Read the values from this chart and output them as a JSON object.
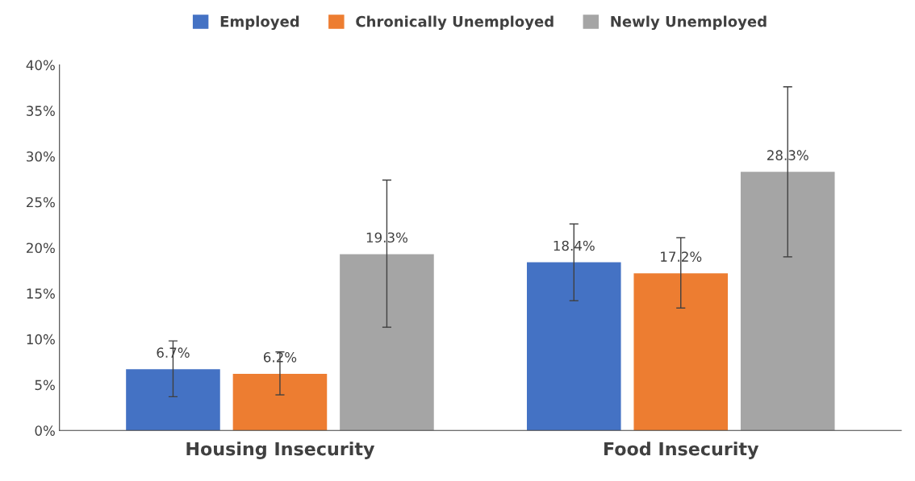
{
  "chart_data": {
    "type": "bar",
    "categories": [
      "Housing Insecurity",
      "Food Insecurity"
    ],
    "series": [
      {
        "name": "Employed",
        "color": "#4472c4",
        "values": [
          6.7,
          18.4
        ],
        "errors": [
          [
            3.7,
            9.8
          ],
          [
            14.2,
            22.6
          ]
        ],
        "value_labels": [
          "6.7%",
          "18.4%"
        ]
      },
      {
        "name": "Chronically Unemployed",
        "color": "#ed7d31",
        "values": [
          6.2,
          17.2
        ],
        "errors": [
          [
            3.9,
            8.6
          ],
          [
            13.4,
            21.1
          ]
        ],
        "value_labels": [
          "6.2%",
          "17.2%"
        ]
      },
      {
        "name": "Newly Unemployed",
        "color": "#a5a5a5",
        "values": [
          19.3,
          28.3
        ],
        "errors": [
          [
            11.3,
            27.4
          ],
          [
            19.0,
            37.6
          ]
        ],
        "value_labels": [
          "19.3%",
          "28.3%"
        ]
      }
    ],
    "ylim": [
      0,
      40
    ],
    "yticks": [
      {
        "value": 0,
        "label": "0%"
      },
      {
        "value": 5,
        "label": "5%"
      },
      {
        "value": 10,
        "label": "10%"
      },
      {
        "value": 15,
        "label": "15%"
      },
      {
        "value": 20,
        "label": "20%"
      },
      {
        "value": 25,
        "label": "25%"
      },
      {
        "value": 30,
        "label": "30%"
      },
      {
        "value": 35,
        "label": "35%"
      },
      {
        "value": 40,
        "label": "40%"
      }
    ],
    "grid": false,
    "legend": "top"
  }
}
